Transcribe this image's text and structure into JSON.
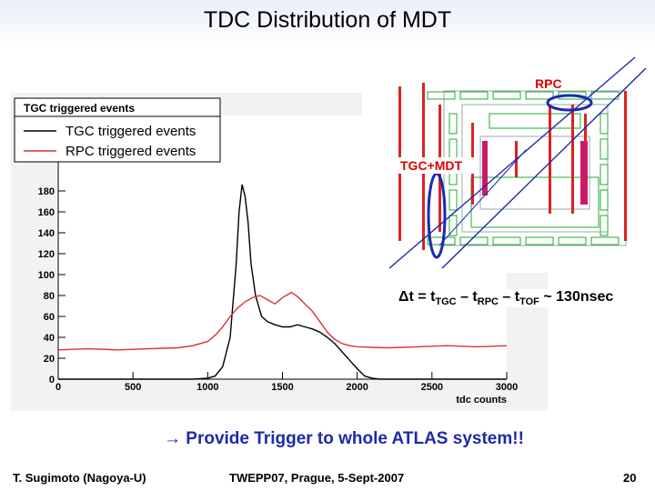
{
  "slide": {
    "title": "TDC Distribution of MDT",
    "conclusion": "Provide Trigger to whole ATLAS system!!",
    "arrow_symbol": "→",
    "footer_left": "T. Sugimoto (Nagoya-U)",
    "footer_center": "TWEPP07, Prague, 5-Sept-2007",
    "footer_right": "20"
  },
  "formula": {
    "prefix": "Δt = t",
    "sub1": "TGC",
    "mid1": " – t",
    "sub2": "RPC",
    "mid2": " – t",
    "sub3": "TOF",
    "suffix": " ~ 130nsec"
  },
  "detector": {
    "label_rpc": "RPC",
    "label_tgc_mdt": "TGC+MDT"
  },
  "chart_data": {
    "type": "line",
    "title": "TGC triggered events",
    "xlabel": "tdc counts",
    "ylabel": "",
    "xlim": [
      0,
      3000
    ],
    "ylim": [
      0,
      200
    ],
    "xticks": [
      0,
      500,
      1000,
      1500,
      2000,
      2500,
      3000
    ],
    "yticks": [
      0,
      20,
      40,
      60,
      80,
      100,
      120,
      140,
      160,
      180
    ],
    "legend": {
      "placement": "top-left"
    },
    "grid": false,
    "series": [
      {
        "name": "TGC triggered events",
        "color": "#000000",
        "points": [
          [
            0,
            0
          ],
          [
            900,
            0
          ],
          [
            1000,
            1
          ],
          [
            1050,
            3
          ],
          [
            1100,
            12
          ],
          [
            1150,
            40
          ],
          [
            1190,
            110
          ],
          [
            1210,
            160
          ],
          [
            1230,
            186
          ],
          [
            1250,
            175
          ],
          [
            1270,
            150
          ],
          [
            1290,
            110
          ],
          [
            1320,
            80
          ],
          [
            1360,
            60
          ],
          [
            1400,
            55
          ],
          [
            1450,
            52
          ],
          [
            1500,
            50
          ],
          [
            1550,
            50
          ],
          [
            1600,
            52
          ],
          [
            1650,
            50
          ],
          [
            1700,
            48
          ],
          [
            1750,
            45
          ],
          [
            1800,
            40
          ],
          [
            1850,
            34
          ],
          [
            1900,
            26
          ],
          [
            1950,
            18
          ],
          [
            2000,
            10
          ],
          [
            2050,
            3
          ],
          [
            2100,
            1
          ],
          [
            2150,
            0
          ],
          [
            3000,
            0
          ]
        ]
      },
      {
        "name": "RPC triggered events",
        "color": "#e03030",
        "points": [
          [
            0,
            28
          ],
          [
            200,
            29
          ],
          [
            400,
            28
          ],
          [
            600,
            29
          ],
          [
            800,
            30
          ],
          [
            900,
            32
          ],
          [
            1000,
            36
          ],
          [
            1050,
            42
          ],
          [
            1100,
            50
          ],
          [
            1150,
            60
          ],
          [
            1200,
            68
          ],
          [
            1250,
            74
          ],
          [
            1300,
            78
          ],
          [
            1350,
            80
          ],
          [
            1400,
            76
          ],
          [
            1450,
            72
          ],
          [
            1500,
            78
          ],
          [
            1560,
            83
          ],
          [
            1600,
            79
          ],
          [
            1650,
            72
          ],
          [
            1700,
            65
          ],
          [
            1750,
            55
          ],
          [
            1800,
            45
          ],
          [
            1850,
            38
          ],
          [
            1900,
            34
          ],
          [
            1950,
            32
          ],
          [
            2000,
            31
          ],
          [
            2200,
            30
          ],
          [
            2400,
            31
          ],
          [
            2600,
            32
          ],
          [
            2800,
            31
          ],
          [
            3000,
            32
          ]
        ]
      }
    ]
  }
}
